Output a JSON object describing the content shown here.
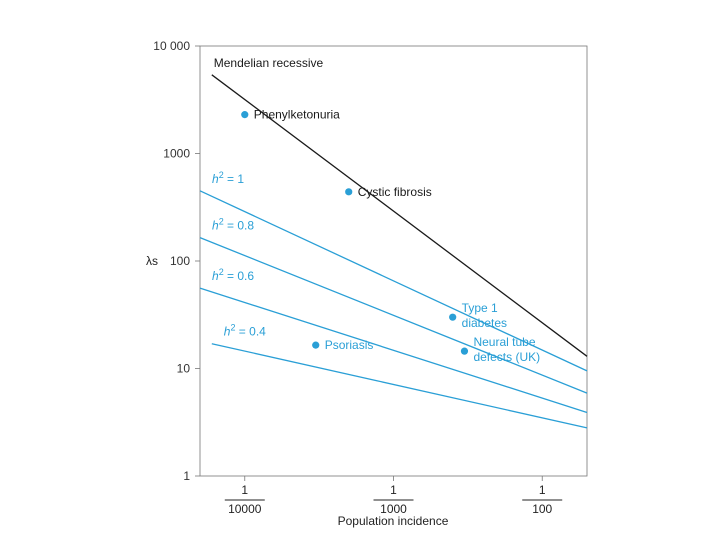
{
  "chart_data": {
    "type": "line",
    "title": "",
    "x_scale": "log",
    "y_scale": "log",
    "xlabel": "Population incidence",
    "ylabel": "λs",
    "xlim": [
      5e-05,
      0.02
    ],
    "ylim": [
      1,
      10000
    ],
    "grid": false,
    "x_ticks": [
      {
        "value": 0.0001,
        "numerator": "1",
        "denominator": "10000"
      },
      {
        "value": 0.001,
        "numerator": "1",
        "denominator": "1000"
      },
      {
        "value": 0.01,
        "numerator": "1",
        "denominator": "100"
      }
    ],
    "y_ticks": [
      {
        "value": 10000,
        "label": "10 000"
      },
      {
        "value": 1000,
        "label": "1000"
      },
      {
        "value": 100,
        "label": "100"
      },
      {
        "value": 10,
        "label": "10"
      },
      {
        "value": 1,
        "label": "1"
      }
    ],
    "series": [
      {
        "name": "Mendelian recessive",
        "label": "Mendelian recessive",
        "color": "#1a1a1a",
        "x": [
          6e-05,
          0.02
        ],
        "y": [
          5400,
          13
        ]
      },
      {
        "name": "h2 = 1",
        "label_prefix": "h",
        "label_sup": "2",
        "label_suffix": " = 1",
        "color": "#2a9fd6",
        "x": [
          5e-05,
          0.02
        ],
        "y": [
          450,
          9.5
        ]
      },
      {
        "name": "h2 = 0.8",
        "label_prefix": "h",
        "label_sup": "2",
        "label_suffix": " = 0.8",
        "color": "#2a9fd6",
        "x": [
          5e-05,
          0.02
        ],
        "y": [
          165,
          5.9
        ]
      },
      {
        "name": "h2 = 0.6",
        "label_prefix": "h",
        "label_sup": "2",
        "label_suffix": " = 0.6",
        "color": "#2a9fd6",
        "x": [
          5e-05,
          0.02
        ],
        "y": [
          56,
          3.9
        ]
      },
      {
        "name": "h2 = 0.4",
        "label_prefix": "h",
        "label_sup": "2",
        "label_suffix": " = 0.4",
        "color": "#2a9fd6",
        "x": [
          6e-05,
          0.02
        ],
        "y": [
          17,
          2.8
        ]
      }
    ],
    "points": [
      {
        "name": "Phenylketonuria",
        "lines": [
          "Phenylketonuria"
        ],
        "x": 0.0001,
        "y": 2300,
        "text_color": "#1a1a1a"
      },
      {
        "name": "Cystic fibrosis",
        "lines": [
          "Cystic fibrosis"
        ],
        "x": 0.0005,
        "y": 440,
        "text_color": "#1a1a1a"
      },
      {
        "name": "Type 1 diabetes",
        "lines": [
          "Type 1",
          "diabetes"
        ],
        "x": 0.0025,
        "y": 30,
        "text_color": "#2a9fd6"
      },
      {
        "name": "Psoriasis",
        "lines": [
          "Psoriasis"
        ],
        "x": 0.0003,
        "y": 16.5,
        "text_color": "#2a9fd6"
      },
      {
        "name": "Neural tube defects (UK)",
        "lines": [
          "Neural tube",
          "defects (UK)"
        ],
        "x": 0.003,
        "y": 14.5,
        "text_color": "#2a9fd6"
      }
    ],
    "point_color": "#2a9fd6"
  }
}
